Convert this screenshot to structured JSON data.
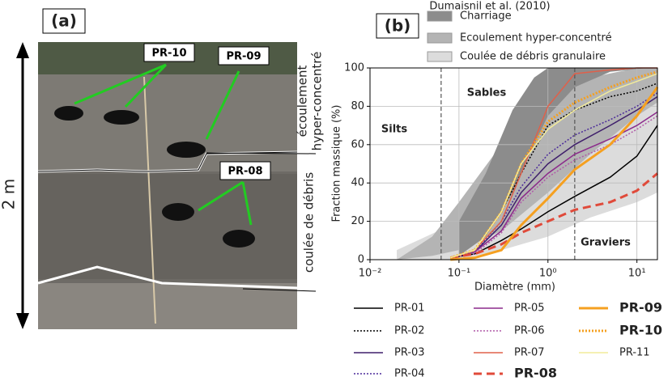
{
  "panel_a": {
    "label": "(a)",
    "scale": "2 m",
    "samples": [
      "PR-10",
      "PR-09",
      "PR-08"
    ],
    "units": [
      [
        "écoulement",
        "hyper-concentré"
      ],
      [
        "coulée de débris"
      ]
    ]
  },
  "chart_data": {
    "type": "line",
    "label": "(b)",
    "xlabel": "Diamètre (mm)",
    "ylabel": "Fraction massique (%)",
    "xlog": true,
    "grid": true,
    "xlim": [
      0.01,
      17
    ],
    "xticks": [
      {
        "value": 0.01,
        "label": "10⁻²"
      },
      {
        "value": 0.1,
        "label": "10⁻¹"
      },
      {
        "value": 1,
        "label": "10⁰"
      },
      {
        "value": 10,
        "label": "10¹"
      }
    ],
    "ylim": [
      0,
      100
    ],
    "yticks": [
      0,
      20,
      40,
      60,
      80,
      100
    ],
    "boundaries": [
      0.063,
      2
    ],
    "annotations": [
      "Silts",
      "Sables",
      "Graviers"
    ],
    "envelope_title": "Dumaisnil et al. (2010)",
    "envelopes": [
      {
        "name": "Coulée de débris granulaire",
        "color": "#dcdcdc",
        "x": [
          0.02,
          0.1,
          0.3,
          1,
          3,
          10,
          17
        ],
        "upper": [
          5,
          20,
          40,
          60,
          75,
          88,
          92
        ],
        "lower": [
          0,
          0,
          5,
          12,
          22,
          30,
          35
        ]
      },
      {
        "name": "Ecoulement hyper-concentré",
        "color": "#b4b4b4",
        "x": [
          0.02,
          0.05,
          0.1,
          0.3,
          1,
          3,
          10,
          17
        ],
        "upper": [
          0,
          12,
          30,
          60,
          85,
          95,
          100,
          100
        ],
        "lower": [
          0,
          2,
          5,
          15,
          35,
          55,
          75,
          82
        ]
      },
      {
        "name": "Charriage",
        "color": "#8c8c8c",
        "x": [
          0.1,
          0.2,
          0.4,
          0.7,
          1,
          2,
          5,
          13
        ],
        "upper": [
          20,
          45,
          78,
          95,
          100,
          100,
          100,
          100
        ],
        "lower": [
          2,
          12,
          35,
          60,
          75,
          90,
          98,
          100
        ]
      }
    ],
    "x": [
      0.08,
      0.15,
      0.3,
      0.5,
      1,
      2,
      5,
      10,
      17
    ],
    "series": [
      {
        "name": "PR-01",
        "color": "#000000",
        "style": "solid",
        "bold": false,
        "values": [
          1,
          3,
          10,
          16,
          25,
          33,
          43,
          54,
          70
        ]
      },
      {
        "name": "PR-02",
        "color": "#000000",
        "style": "dotted",
        "bold": false,
        "values": [
          1,
          5,
          25,
          45,
          70,
          78,
          85,
          88,
          92
        ]
      },
      {
        "name": "PR-03",
        "color": "#3f1f6b",
        "style": "solid",
        "bold": false,
        "values": [
          1,
          4,
          18,
          35,
          50,
          60,
          70,
          78,
          85
        ]
      },
      {
        "name": "PR-04",
        "color": "#4b2a9a",
        "style": "dotted",
        "bold": false,
        "values": [
          1,
          4,
          20,
          38,
          55,
          65,
          73,
          80,
          87
        ]
      },
      {
        "name": "PR-05",
        "color": "#8b2a8b",
        "style": "solid",
        "bold": false,
        "values": [
          1,
          4,
          15,
          32,
          45,
          55,
          63,
          70,
          77
        ]
      },
      {
        "name": "PR-06",
        "color": "#b05aa8",
        "style": "dotted",
        "bold": false,
        "values": [
          1,
          3,
          14,
          30,
          43,
          52,
          60,
          68,
          75
        ]
      },
      {
        "name": "PR-07",
        "color": "#e0604a",
        "style": "solid",
        "bold": false,
        "values": [
          1,
          5,
          20,
          45,
          80,
          97,
          99,
          100,
          100
        ]
      },
      {
        "name": "PR-08",
        "color": "#e04a3a",
        "style": "dashed",
        "bold": true,
        "values": [
          1,
          3,
          8,
          14,
          20,
          26,
          30,
          36,
          45
        ]
      },
      {
        "name": "PR-09",
        "color": "#f5a020",
        "style": "solid",
        "bold": true,
        "values": [
          0,
          1,
          5,
          18,
          32,
          47,
          60,
          75,
          90
        ]
      },
      {
        "name": "PR-10",
        "color": "#f5a020",
        "style": "dotted",
        "bold": true,
        "values": [
          1,
          5,
          25,
          50,
          72,
          82,
          90,
          95,
          98
        ]
      },
      {
        "name": "PR-11",
        "color": "#f2eb9a",
        "style": "solid",
        "bold": false,
        "values": [
          1,
          5,
          25,
          50,
          68,
          78,
          88,
          93,
          97
        ]
      }
    ]
  }
}
